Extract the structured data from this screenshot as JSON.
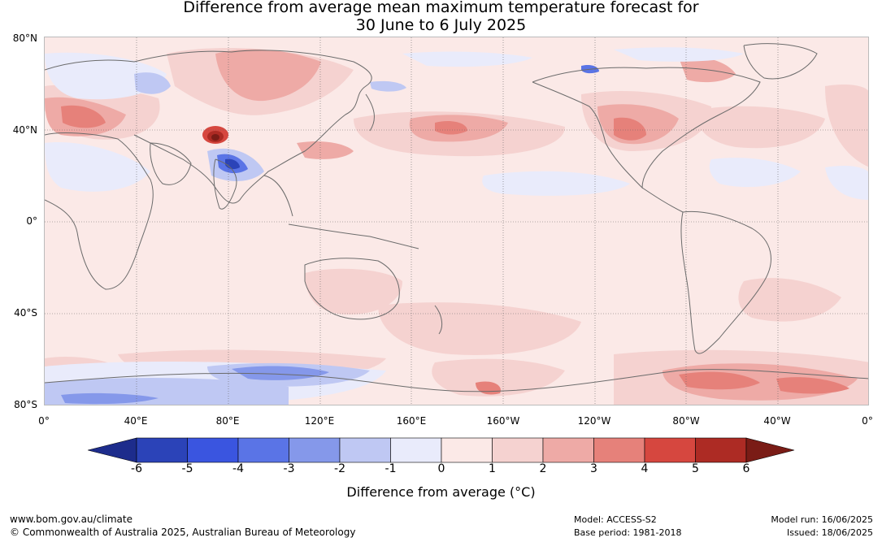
{
  "title_line1": "Difference from average mean maximum temperature forecast for",
  "title_line2": "30 June to 6 July 2025",
  "lat_labels": [
    "80°N",
    "40°N",
    "0°",
    "40°S",
    "80°S"
  ],
  "lon_labels": [
    "0°",
    "40°E",
    "80°E",
    "120°E",
    "160°E",
    "160°W",
    "120°W",
    "80°W",
    "40°W",
    "0°"
  ],
  "colorbar": {
    "ticks": [
      "-6",
      "-5",
      "-4",
      "-3",
      "-2",
      "-1",
      "0",
      "1",
      "2",
      "3",
      "4",
      "5",
      "6"
    ],
    "colors": [
      "#1d2c8c",
      "#2b43b8",
      "#3a55e0",
      "#5a74e6",
      "#8598ea",
      "#bfc8f3",
      "#e9ebfb",
      "#fbe9e7",
      "#f5d2d0",
      "#eeaaa6",
      "#e6817a",
      "#d6473f",
      "#ad2b24",
      "#7a1c16"
    ],
    "label": "Difference from average (°C)"
  },
  "footer": {
    "website": "www.bom.gov.au/climate",
    "copyright": "© Commonwealth of Australia 2025, Australian Bureau of Meteorology",
    "model": "Model: ACCESS-S2",
    "base_period": "Base period: 1981-2018",
    "model_run": "Model run: 16/06/2025",
    "issued": "Issued: 18/06/2025"
  }
}
